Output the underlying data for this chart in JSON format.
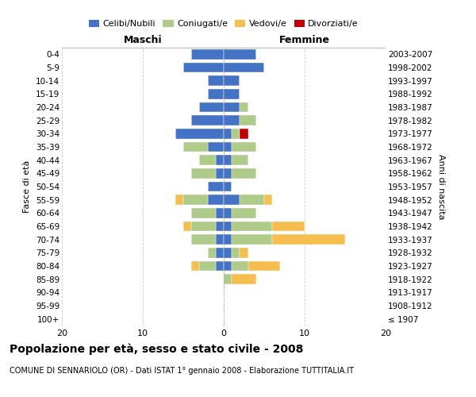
{
  "age_groups": [
    "100+",
    "95-99",
    "90-94",
    "85-89",
    "80-84",
    "75-79",
    "70-74",
    "65-69",
    "60-64",
    "55-59",
    "50-54",
    "45-49",
    "40-44",
    "35-39",
    "30-34",
    "25-29",
    "20-24",
    "15-19",
    "10-14",
    "5-9",
    "0-4"
  ],
  "birth_years": [
    "≤ 1907",
    "1908-1912",
    "1913-1917",
    "1918-1922",
    "1923-1927",
    "1928-1932",
    "1933-1937",
    "1938-1942",
    "1943-1947",
    "1948-1952",
    "1953-1957",
    "1958-1962",
    "1963-1967",
    "1968-1972",
    "1973-1977",
    "1978-1982",
    "1983-1987",
    "1988-1992",
    "1993-1997",
    "1998-2002",
    "2003-2007"
  ],
  "colors": {
    "celibe": "#4472C4",
    "coniugato": "#AECB8A",
    "vedovo": "#F5BE4F",
    "divorziato": "#C00000"
  },
  "maschi": {
    "celibe": [
      0,
      0,
      0,
      0,
      1,
      1,
      1,
      1,
      1,
      2,
      2,
      1,
      1,
      2,
      6,
      4,
      3,
      2,
      2,
      5,
      4
    ],
    "coniugato": [
      0,
      0,
      0,
      0,
      2,
      1,
      3,
      3,
      3,
      3,
      0,
      3,
      2,
      3,
      0,
      0,
      0,
      0,
      0,
      0,
      0
    ],
    "vedovo": [
      0,
      0,
      0,
      0,
      1,
      0,
      0,
      1,
      0,
      1,
      0,
      0,
      0,
      0,
      0,
      0,
      0,
      0,
      0,
      0,
      0
    ],
    "divorziato": [
      0,
      0,
      0,
      0,
      0,
      0,
      0,
      0,
      0,
      0,
      0,
      0,
      0,
      0,
      0,
      0,
      0,
      0,
      0,
      0,
      0
    ]
  },
  "femmine": {
    "celibe": [
      0,
      0,
      0,
      0,
      1,
      1,
      1,
      1,
      1,
      2,
      1,
      1,
      1,
      1,
      1,
      2,
      2,
      2,
      2,
      5,
      4
    ],
    "coniugato": [
      0,
      0,
      0,
      1,
      2,
      1,
      5,
      5,
      3,
      3,
      0,
      3,
      2,
      3,
      1,
      2,
      1,
      0,
      0,
      0,
      0
    ],
    "vedovo": [
      0,
      0,
      0,
      3,
      4,
      1,
      9,
      4,
      0,
      1,
      0,
      0,
      0,
      0,
      0,
      0,
      0,
      0,
      0,
      0,
      0
    ],
    "divorziato": [
      0,
      0,
      0,
      0,
      0,
      0,
      0,
      0,
      0,
      0,
      0,
      0,
      0,
      0,
      1,
      0,
      0,
      0,
      0,
      0,
      0
    ]
  },
  "xlim": 20,
  "title": "Popolazione per età, sesso e stato civile - 2008",
  "subtitle": "COMUNE DI SENNARIOLO (OR) - Dati ISTAT 1° gennaio 2008 - Elaborazione TUTTITALIA.IT",
  "ylabel_left": "Fasce di età",
  "ylabel_right": "Anni di nascita",
  "xlabel_left": "Maschi",
  "xlabel_right": "Femmine",
  "bg_color": "#ffffff",
  "grid_color": "#cccccc",
  "legend_labels": [
    "Celibi/Nubili",
    "Coniugati/e",
    "Vedovi/e",
    "Divorziati/e"
  ]
}
